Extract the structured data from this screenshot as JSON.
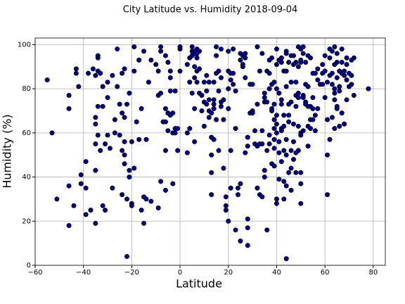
{
  "chart_data": {
    "type": "scatter",
    "title": "City Latitude vs. Humidity 2018-09-04",
    "xlabel": "Latitude",
    "ylabel": "Humidity (%)",
    "color": "#00008b",
    "grid": true,
    "xlim": [
      -60,
      85
    ],
    "ylim": [
      0,
      103
    ],
    "xticks": [
      {
        "value": -60,
        "label": "−60"
      },
      {
        "value": -40,
        "label": "−40"
      },
      {
        "value": -20,
        "label": "−20"
      },
      0,
      20,
      40,
      60,
      80
    ],
    "yticks": [
      0,
      20,
      40,
      60,
      80,
      100
    ],
    "x": [
      -55,
      -53,
      -51,
      -46,
      -46,
      -46,
      -46,
      -44,
      -43,
      -43,
      -42,
      -41,
      -41,
      -39,
      -39,
      -39,
      -38,
      -37,
      -36,
      -35,
      -35,
      -35,
      -35,
      -35,
      -35,
      -34,
      -34,
      -34,
      -34,
      -34,
      -33,
      -33,
      -32,
      -32,
      -32,
      -31,
      -31,
      -30,
      -30,
      -30,
      -29,
      -28,
      -28,
      -27,
      -27,
      -26,
      -26,
      -25,
      -25,
      -24,
      -24,
      -24,
      -24,
      -23,
      -23,
      -23,
      -23,
      -23,
      -22,
      -22,
      -22,
      -21,
      -21,
      -21,
      -20,
      -20,
      -20,
      -19,
      -19,
      -19,
      -18,
      -17,
      -17,
      -17,
      -16,
      -16,
      -15,
      -15,
      -15,
      -14,
      -14,
      -13,
      -12,
      -12,
      -10,
      -9,
      -9,
      -9,
      -8,
      -8,
      -8,
      -8,
      -7,
      -6,
      -6,
      -6,
      -6,
      -6,
      -5,
      -5,
      -5,
      -4,
      -4,
      -4,
      -4,
      -3,
      -3,
      -3,
      -2,
      -2,
      -2,
      -1,
      -1,
      0,
      0,
      0,
      3,
      3,
      3,
      4,
      4,
      4,
      5,
      5,
      5,
      5,
      6,
      6,
      6,
      6,
      6,
      6,
      7,
      7,
      7,
      7,
      7,
      8,
      8,
      8,
      9,
      9,
      10,
      10,
      10,
      11,
      11,
      11,
      12,
      12,
      12,
      12,
      13,
      13,
      13,
      13,
      13,
      14,
      14,
      14,
      14,
      14,
      15,
      15,
      15,
      15,
      16,
      16,
      16,
      17,
      17,
      17,
      17,
      18,
      18,
      18,
      19,
      19,
      19,
      20,
      20,
      20,
      20,
      20,
      21,
      21,
      21,
      21,
      22,
      22,
      22,
      23,
      23,
      23,
      24,
      24,
      25,
      25,
      25,
      25,
      26,
      26,
      26,
      27,
      27,
      27,
      27,
      28,
      28,
      28,
      28,
      28,
      29,
      29,
      30,
      30,
      30,
      31,
      31,
      32,
      32,
      32,
      32,
      33,
      33,
      33,
      34,
      34,
      34,
      34,
      35,
      35,
      35,
      35,
      35,
      36,
      36,
      36,
      36,
      37,
      37,
      37,
      37,
      37,
      38,
      38,
      38,
      38,
      38,
      39,
      39,
      39,
      39,
      39,
      39,
      39,
      40,
      40,
      40,
      40,
      40,
      40,
      40,
      40,
      41,
      41,
      41,
      41,
      41,
      42,
      42,
      42,
      42,
      42,
      42,
      42,
      43,
      43,
      43,
      43,
      43,
      43,
      44,
      44,
      44,
      44,
      44,
      44,
      44,
      44,
      45,
      45,
      45,
      45,
      45,
      46,
      46,
      46,
      46,
      46,
      46,
      47,
      47,
      47,
      47,
      47,
      48,
      48,
      48,
      48,
      48,
      48,
      49,
      49,
      49,
      49,
      49,
      49,
      50,
      50,
      50,
      50,
      50,
      50,
      50,
      50,
      51,
      51,
      51,
      51,
      51,
      52,
      52,
      52,
      52,
      53,
      53,
      53,
      53,
      53,
      54,
      54,
      54,
      54,
      55,
      55,
      55,
      55,
      56,
      56,
      56,
      57,
      57,
      57,
      58,
      59,
      59,
      59,
      60,
      60,
      60,
      61,
      61,
      61,
      61,
      62,
      62,
      62,
      62,
      63,
      63,
      63,
      63,
      64,
      64,
      64,
      64,
      64,
      64,
      65,
      65,
      65,
      65,
      65,
      66,
      66,
      66,
      66,
      67,
      67,
      67,
      67,
      68,
      68,
      68,
      68,
      69,
      69,
      69,
      69,
      70,
      70,
      71,
      71,
      71,
      72,
      72,
      78
    ],
    "values": [
      84,
      60,
      30,
      77,
      71,
      36,
      18,
      27,
      87,
      89,
      81,
      41,
      37,
      23,
      47,
      35,
      87,
      25,
      89,
      86,
      67,
      64,
      55,
      43,
      19,
      94,
      95,
      88,
      72,
      59,
      52,
      87,
      72,
      81,
      27,
      55,
      25,
      83,
      76,
      59,
      53,
      86,
      35,
      60,
      66,
      98,
      81,
      73,
      59,
      87,
      69,
      52,
      32,
      67,
      89,
      56,
      46,
      50,
      4,
      73,
      30,
      43,
      78,
      40,
      56,
      28,
      27,
      99,
      44,
      88,
      65,
      57,
      93,
      93,
      71,
      25,
      97,
      19,
      31,
      30,
      57,
      83,
      29,
      93,
      91,
      88,
      77,
      26,
      78,
      97,
      38,
      99,
      65,
      52,
      71,
      65,
      95,
      34,
      61,
      92,
      69,
      88,
      79,
      85,
      68,
      69,
      60,
      37,
      62,
      79,
      60,
      62,
      52,
      98,
      99,
      88,
      91,
      60,
      51,
      62,
      83,
      94,
      95,
      97,
      99,
      78,
      90,
      85,
      97,
      96,
      71,
      56,
      98,
      96,
      94,
      88,
      83,
      97,
      89,
      78,
      77,
      70,
      74,
      63,
      83,
      73,
      79,
      86,
      75,
      83,
      70,
      67,
      69,
      58,
      50,
      42,
      32,
      73,
      75,
      71,
      57,
      83,
      99,
      95,
      87,
      66,
      88,
      52,
      79,
      98,
      85,
      74,
      72,
      75,
      66,
      44,
      31,
      27,
      25,
      97,
      88,
      80,
      71,
      20,
      84,
      87,
      52,
      35,
      98,
      82,
      87,
      79,
      62,
      16,
      35,
      32,
      11,
      37,
      96,
      93,
      91,
      95,
      90,
      94,
      96,
      85,
      51,
      17,
      9,
      21,
      54,
      58,
      82,
      69,
      82,
      70,
      69,
      61,
      55,
      99,
      54,
      73,
      35,
      32,
      55,
      88,
      96,
      31,
      61,
      55,
      74,
      76,
      40,
      43,
      78,
      88,
      74,
      16,
      52,
      87,
      80,
      93,
      59,
      55,
      82,
      71,
      94,
      70,
      46,
      83,
      73,
      62,
      57,
      53,
      45,
      66,
      98,
      91,
      80,
      68,
      64,
      30,
      28,
      60,
      93,
      78,
      51,
      39,
      56,
      94,
      92,
      75,
      61,
      47,
      62,
      73,
      88,
      68,
      52,
      38,
      30,
      63,
      96,
      97,
      88,
      81,
      50,
      36,
      3,
      57,
      92,
      73,
      68,
      42,
      65,
      83,
      95,
      74,
      52,
      44,
      34,
      95,
      91,
      64,
      56,
      48,
      92,
      83,
      77,
      72,
      42,
      51,
      99,
      90,
      76,
      63,
      52,
      78,
      98,
      93,
      92,
      60,
      59,
      42,
      37,
      28,
      99,
      96,
      77,
      76,
      61,
      92,
      74,
      82,
      73,
      95,
      72,
      81,
      63,
      54,
      94,
      62,
      72,
      66,
      87,
      71,
      66,
      76,
      68,
      61,
      87,
      84,
      89,
      71,
      82,
      91,
      82,
      87,
      95,
      88,
      76,
      83,
      66,
      50,
      32,
      98,
      94,
      86,
      57,
      97,
      82,
      67,
      87,
      99,
      91,
      80,
      75,
      62,
      78,
      92,
      85,
      71,
      72,
      96,
      88,
      81,
      63,
      79,
      92,
      87,
      98,
      69,
      86,
      88,
      64,
      64,
      91,
      94,
      75,
      84,
      87,
      81,
      86,
      93,
      82,
      77,
      94,
      80
    ]
  }
}
